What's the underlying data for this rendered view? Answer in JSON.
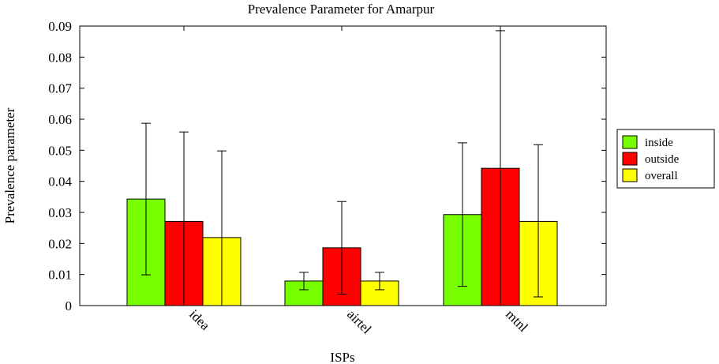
{
  "chart_data": {
    "type": "bar",
    "title": "Prevalence Parameter for Amarpur",
    "xlabel": "ISPs",
    "ylabel": "Prevalence parameter",
    "categories": [
      "idea",
      "airtel",
      "mtnl"
    ],
    "ylim": [
      0,
      0.09
    ],
    "yticks": [
      "0",
      "0.01",
      "0.02",
      "0.03",
      "0.04",
      "0.05",
      "0.06",
      "0.07",
      "0.08",
      "0.09"
    ],
    "grid": false,
    "legend_position": "right",
    "series": [
      {
        "name": "inside",
        "color": "#77ff00",
        "values": [
          0.0343,
          0.0079,
          0.0293
        ],
        "error_low": [
          0.0099,
          0.0051,
          0.0062
        ],
        "error_high": [
          0.0587,
          0.0107,
          0.0524
        ]
      },
      {
        "name": "outside",
        "color": "#ff0000",
        "values": [
          0.0271,
          0.0186,
          0.0442
        ],
        "error_low": [
          0.0,
          0.0037,
          0.0
        ],
        "error_high": [
          0.0559,
          0.0335,
          0.0885
        ]
      },
      {
        "name": "overall",
        "color": "#ffff00",
        "values": [
          0.0219,
          0.0079,
          0.0271
        ],
        "error_low": [
          0.0,
          0.0051,
          0.0028
        ],
        "error_high": [
          0.0498,
          0.0107,
          0.0518
        ]
      }
    ]
  }
}
